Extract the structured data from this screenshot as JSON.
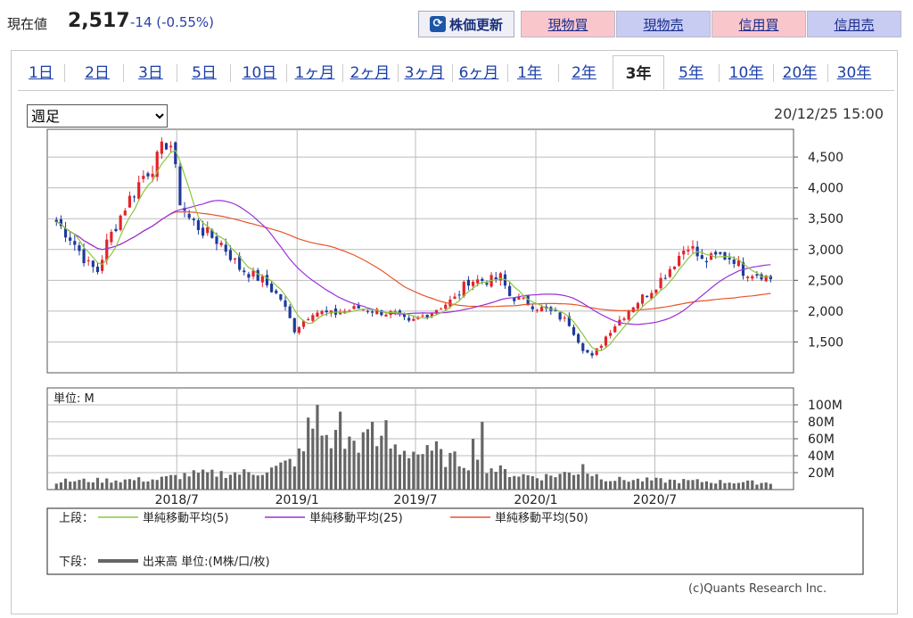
{
  "header": {
    "price_label": "現在値",
    "price_value": "2,517",
    "price_change": "-14 (-0.55%)",
    "refresh_label": "株価更新",
    "buttons": [
      {
        "label": "現物買",
        "kind": "buy"
      },
      {
        "label": "現物売",
        "kind": "sell"
      },
      {
        "label": "信用買",
        "kind": "buy"
      },
      {
        "label": "信用売",
        "kind": "sell"
      }
    ]
  },
  "tabs": [
    "1日",
    "2日",
    "3日",
    "5日",
    "10日",
    "1ヶ月",
    "2ヶ月",
    "3ヶ月",
    "6ヶ月",
    "1年",
    "2年",
    "3年",
    "5年",
    "10年",
    "20年",
    "30年"
  ],
  "active_tab": "3年",
  "period_select": {
    "selected": "週足"
  },
  "timestamp": "20/12/25 15:00",
  "volume_unit_label": "単位: M",
  "legend": {
    "upper_label": "上段：",
    "lower_label": "下段：",
    "ma5": "単純移動平均(5)",
    "ma25": "単純移動平均(25)",
    "ma50": "単純移動平均(50)",
    "volume": "出来高 単位:(M株/口/枚)"
  },
  "copyright": "(c)Quants Research Inc.",
  "colors": {
    "up": "#e3232b",
    "down": "#1d3a9c",
    "ma5": "#8cc63f",
    "ma25": "#9b30d9",
    "ma50": "#e8542a",
    "volume": "#666666"
  },
  "chart_data": {
    "type": "candlestick",
    "price_axis": {
      "ticks": [
        1500,
        2000,
        2500,
        3000,
        3500,
        4000,
        4500
      ],
      "tick_labels": [
        "1,500",
        "2,000",
        "2,500",
        "3,000",
        "3,500",
        "4,000",
        "4,500"
      ],
      "ylim": [
        1000,
        4950
      ]
    },
    "volume_axis": {
      "ticks": [
        20,
        40,
        60,
        80,
        100
      ],
      "tick_labels": [
        "20M",
        "40M",
        "60M",
        "80M",
        "100M"
      ],
      "ylim": [
        0,
        120
      ]
    },
    "x_tick_labels": [
      "2018/7",
      "2019/1",
      "2019/7",
      "2020/1",
      "2020/7"
    ],
    "close_anchors": [
      [
        "2017-12-29",
        3450
      ],
      [
        "2018-01-19",
        3200
      ],
      [
        "2018-02-16",
        2750
      ],
      [
        "2018-03-02",
        2650
      ],
      [
        "2018-03-16",
        3100
      ],
      [
        "2018-04-13",
        3700
      ],
      [
        "2018-05-11",
        4200
      ],
      [
        "2018-06-01",
        4450
      ],
      [
        "2018-06-15",
        4750
      ],
      [
        "2018-06-22",
        4700
      ],
      [
        "2018-07-06",
        3800
      ],
      [
        "2018-07-20",
        3500
      ],
      [
        "2018-08-10",
        3300
      ],
      [
        "2018-09-07",
        3100
      ],
      [
        "2018-10-05",
        2700
      ],
      [
        "2018-11-09",
        2500
      ],
      [
        "2018-12-07",
        2200
      ],
      [
        "2018-12-28",
        1700
      ],
      [
        "2019-01-25",
        2000
      ],
      [
        "2019-02-22",
        1950
      ],
      [
        "2019-04-05",
        2050
      ],
      [
        "2019-05-31",
        1950
      ],
      [
        "2019-06-21",
        1800
      ],
      [
        "2019-07-26",
        2000
      ],
      [
        "2019-08-30",
        2200
      ],
      [
        "2019-09-20",
        2500
      ],
      [
        "2019-10-25",
        2500
      ],
      [
        "2019-11-08",
        2550
      ],
      [
        "2019-11-22",
        2250
      ],
      [
        "2019-12-27",
        2100
      ],
      [
        "2020-01-31",
        1950
      ],
      [
        "2020-02-21",
        1800
      ],
      [
        "2020-03-13",
        1400
      ],
      [
        "2020-03-27",
        1250
      ],
      [
        "2020-04-24",
        1700
      ],
      [
        "2020-05-29",
        2100
      ],
      [
        "2020-06-26",
        2350
      ],
      [
        "2020-07-17",
        2600
      ],
      [
        "2020-08-07",
        2900
      ],
      [
        "2020-08-21",
        3100
      ],
      [
        "2020-09-11",
        2800
      ],
      [
        "2020-10-09",
        2900
      ],
      [
        "2020-10-30",
        2850
      ],
      [
        "2020-11-13",
        2650
      ],
      [
        "2020-12-11",
        2600
      ],
      [
        "2020-12-25",
        2517
      ]
    ],
    "volume_anchors": [
      [
        "2017-12-29",
        10
      ],
      [
        "2018-06-01",
        12
      ],
      [
        "2018-07-20",
        18
      ],
      [
        "2018-10-26",
        20
      ],
      [
        "2018-11-30",
        25
      ],
      [
        "2018-12-28",
        35
      ],
      [
        "2019-01-18",
        50
      ],
      [
        "2019-02-01",
        72
      ],
      [
        "2019-02-15",
        62
      ],
      [
        "2019-03-15",
        55
      ],
      [
        "2019-04-12",
        58
      ],
      [
        "2019-05-17",
        52
      ],
      [
        "2019-06-28",
        45
      ],
      [
        "2019-08-09",
        38
      ],
      [
        "2019-10-04",
        30
      ],
      [
        "2019-11-29",
        18
      ],
      [
        "2020-01-10",
        15
      ],
      [
        "2020-03-13",
        22
      ],
      [
        "2020-04-24",
        12
      ],
      [
        "2020-12-25",
        8
      ]
    ],
    "volume_spikes": [
      [
        "2019-01-18",
        85
      ],
      [
        "2019-02-01",
        100
      ],
      [
        "2019-03-08",
        92
      ],
      [
        "2019-04-26",
        80
      ],
      [
        "2019-05-17",
        82
      ],
      [
        "2019-08-02",
        57
      ],
      [
        "2019-09-27",
        60
      ],
      [
        "2019-10-11",
        80
      ],
      [
        "2020-03-13",
        30
      ]
    ],
    "series": [
      {
        "name": "単純移動平均(5)",
        "window": 5
      },
      {
        "name": "単純移動平均(25)",
        "window": 25
      },
      {
        "name": "単純移動平均(50)",
        "window": 50
      }
    ]
  }
}
